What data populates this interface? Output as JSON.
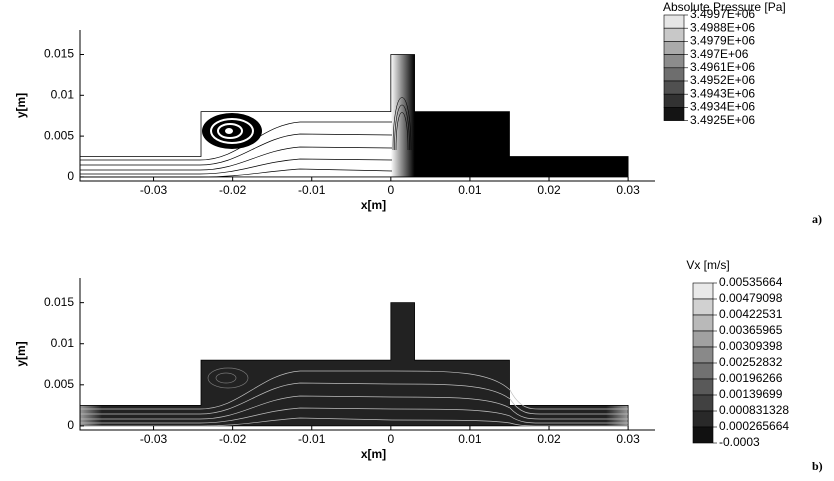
{
  "chart_data": [
    {
      "type": "contour",
      "xlabel": "x[m]",
      "ylabel": "y[m]",
      "panel_label": "a)",
      "xlim": [
        -0.0393,
        0.0334
      ],
      "ylim": [
        -0.0005,
        0.018
      ],
      "xticks": [
        -0.03,
        -0.02,
        -0.01,
        0,
        0.01,
        0.02,
        0.03
      ],
      "yticks": [
        0,
        0.005,
        0.01,
        0.015
      ],
      "outline": {
        "x": [
          -0.0393,
          -0.024,
          -0.024,
          0,
          0,
          0.003,
          0.003,
          0.015,
          0.015,
          0.03,
          0.03,
          -0.0393
        ],
        "y": [
          0.0025,
          0.0025,
          0.008,
          0.008,
          0.015,
          0.015,
          0.008,
          0.008,
          0.0025,
          0.0025,
          0,
          0
        ]
      },
      "colorbar": {
        "title": "Absolute Pressure [Pa]",
        "levels": [
          {
            "value": 3499700,
            "label": "3.4997E+06"
          },
          {
            "value": 3498800,
            "label": "3.4988E+06"
          },
          {
            "value": 3497900,
            "label": "3.4979E+06"
          },
          {
            "value": 3497000,
            "label": "3.497E+06"
          },
          {
            "value": 3496100,
            "label": "3.4961E+06"
          },
          {
            "value": 3495200,
            "label": "3.4952E+06"
          },
          {
            "value": 3494300,
            "label": "3.4943E+06"
          },
          {
            "value": 3493400,
            "label": "3.4934E+06"
          },
          {
            "value": 3492500,
            "label": "3.4925E+06"
          }
        ]
      }
    },
    {
      "type": "contour",
      "xlabel": "x[m]",
      "ylabel": "y[m]",
      "panel_label": "b)",
      "xlim": [
        -0.0393,
        0.0334
      ],
      "ylim": [
        -0.0005,
        0.018
      ],
      "xticks": [
        -0.03,
        -0.02,
        -0.01,
        0,
        0.01,
        0.02,
        0.03
      ],
      "yticks": [
        0,
        0.005,
        0.01,
        0.015
      ],
      "outline": {
        "x": [
          -0.0393,
          -0.024,
          -0.024,
          0,
          0,
          0.003,
          0.003,
          0.015,
          0.015,
          0.03,
          0.03,
          -0.0393
        ],
        "y": [
          0.0025,
          0.0025,
          0.008,
          0.008,
          0.015,
          0.015,
          0.008,
          0.008,
          0.0025,
          0.0025,
          0,
          0
        ]
      },
      "colorbar": {
        "title": "Vx [m/s]",
        "levels": [
          0.00535664,
          0.00479098,
          0.00422531,
          0.00365965,
          0.00309398,
          0.00252832,
          0.00196266,
          0.00139699,
          0.000831328,
          0.000265664,
          -0.0003
        ]
      }
    }
  ]
}
